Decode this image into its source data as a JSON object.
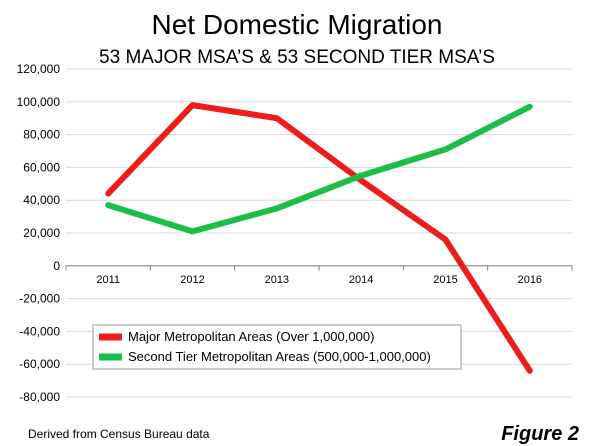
{
  "chart_data": {
    "type": "line",
    "title": "Net Domestic Migration",
    "subtitle": "53 MAJOR MSA’S & 53 SECOND TIER MSA’S",
    "categories": [
      "2011",
      "2012",
      "2013",
      "2014",
      "2015",
      "2016"
    ],
    "y_ticks": [
      "120,000",
      "100,000",
      "80,000",
      "60,000",
      "40,000",
      "20,000",
      "0",
      "-20,000",
      "-40,000",
      "-60,000",
      "-80,000"
    ],
    "ylim": [
      -80000,
      120000
    ],
    "ytick_step": 20000,
    "grid": true,
    "legend_position": "bottom-left",
    "series": [
      {
        "name": "Major Metropolitan Areas (Over 1,000,000)",
        "color": "#ee1c1c",
        "values": [
          44000,
          98000,
          90000,
          52000,
          16000,
          -64000
        ]
      },
      {
        "name": "Second Tier Metropolitan Areas (500,000-1,000,000)",
        "color": "#1cbd48",
        "values": [
          37000,
          21000,
          35000,
          55000,
          71000,
          97000
        ]
      }
    ]
  },
  "footnote": "Derived from Census Bureau data",
  "figure_label": "Figure 2"
}
